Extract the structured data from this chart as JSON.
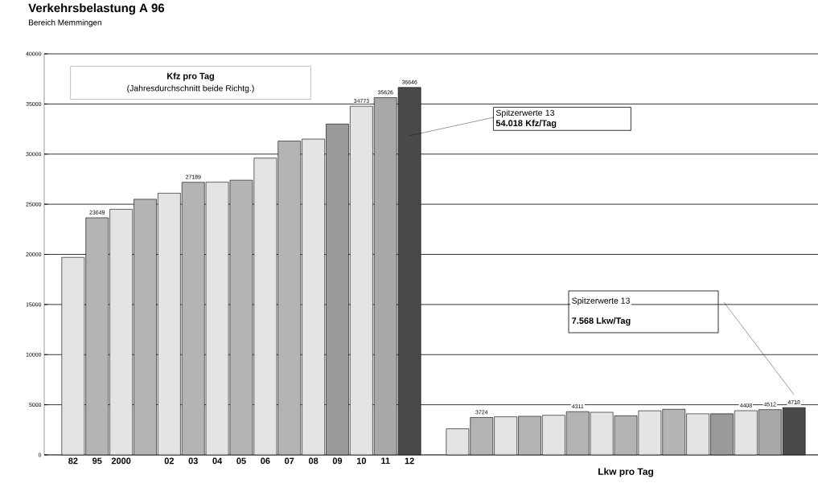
{
  "chart_data": {
    "type": "bar",
    "title": "Verkehrsbelastung A 96",
    "subtitle": "Bereich Memmingen",
    "categories": [
      "82",
      "95",
      "2000",
      null,
      "02",
      "03",
      "04",
      "05",
      "06",
      "07",
      "08",
      "09",
      "10",
      "11",
      "12",
      null,
      null,
      null,
      null,
      null,
      null,
      null,
      null,
      null,
      null,
      null,
      null,
      null,
      null,
      null,
      null
    ],
    "values": [
      19700,
      23649,
      24500,
      25500,
      26100,
      27189,
      27200,
      27400,
      29600,
      31300,
      31500,
      33000,
      34773,
      35626,
      36646,
      null,
      2600,
      3724,
      3800,
      3850,
      3950,
      4311,
      4250,
      3900,
      4400,
      4550,
      4100,
      4100,
      4408,
      4512,
      4718
    ],
    "value_labels": [
      null,
      "23649",
      null,
      null,
      null,
      "27189",
      null,
      null,
      null,
      null,
      null,
      null,
      "34773",
      "35626",
      "36646",
      null,
      null,
      "3724",
      null,
      null,
      null,
      "4311",
      null,
      null,
      null,
      null,
      null,
      null,
      "4408",
      "4512",
      "4718"
    ],
    "colors": [
      "#e4e4e4",
      "#b4b4b4",
      "#e4e4e4",
      "#b4b4b4",
      "#e4e4e4",
      "#b4b4b4",
      "#e4e4e4",
      "#b4b4b4",
      "#e4e4e4",
      "#b4b4b4",
      "#e4e4e4",
      "#9a9a9a",
      "#e4e4e4",
      "#a8a8a8",
      "#4a4a4a",
      null,
      "#e4e4e4",
      "#b4b4b4",
      "#e4e4e4",
      "#b4b4b4",
      "#e4e4e4",
      "#b4b4b4",
      "#e4e4e4",
      "#b4b4b4",
      "#e4e4e4",
      "#b4b4b4",
      "#e4e4e4",
      "#9a9a9a",
      "#e4e4e4",
      "#a8a8a8",
      "#4a4a4a"
    ],
    "ylim": [
      0,
      40000
    ],
    "yticks": [
      0,
      5000,
      10000,
      15000,
      20000,
      25000,
      30000,
      35000,
      40000
    ],
    "grid": "y",
    "annotations": [
      "Kfz pro Tag",
      "(Jahresdurchschnitt beide Richtg.)",
      "Spitzerwerte 13",
      "54.018 Kfz/Tag",
      "Spitzerwerte 13",
      "7.568 Lkw/Tag",
      "Lkw pro Tag"
    ]
  }
}
